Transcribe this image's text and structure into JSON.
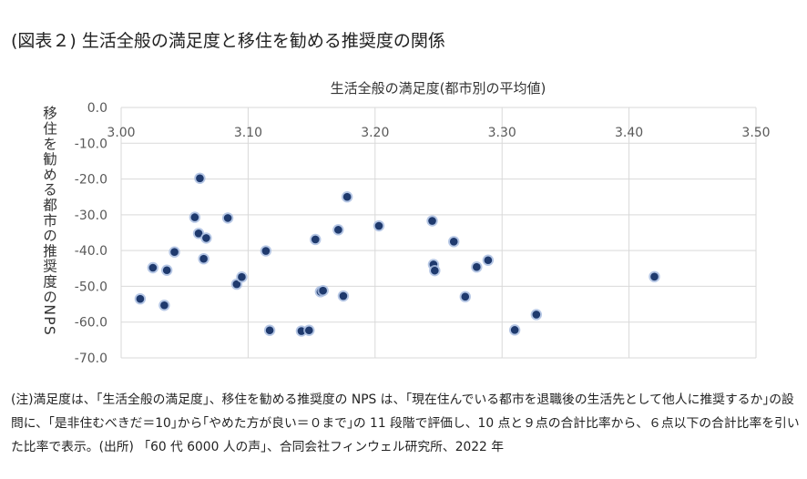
{
  "figure": {
    "title": "(図表２)  生活全般の満足度と移住を勧める推奨度の関係",
    "note": "(注)満足度は、｢生活全般の満足度｣、移住を勧める推奨度の NPS は、｢現在住んでいる都市を退職後の生活先として他人に推奨するか｣の設問に、｢是非住むべきだ＝10｣から｢やめた方が良い＝０まで｣の 11 段階で評価し、10 点と９点の合計比率から、６点以下の合計比率を引いた比率で表示。(出所) 「60 代 6000 人の声」、合同会社フィンウェル研究所、2022 年"
  },
  "chart_data": {
    "type": "scatter",
    "xlabel": "生活全般の満足度(都市別の平均値)",
    "ylabel": "移住を勧める都市の推奨度のNPS",
    "xlim": [
      3.0,
      3.5
    ],
    "ylim": [
      -70,
      0
    ],
    "x_ticks": [
      "3.00",
      "3.10",
      "3.20",
      "3.30",
      "3.40",
      "3.50"
    ],
    "y_ticks": [
      "0.0",
      "-10.0",
      "-20.0",
      "-30.0",
      "-40.0",
      "-50.0",
      "-60.0",
      "-70.0"
    ],
    "grid": true,
    "marker_color": "#1f3a6e",
    "points": [
      {
        "x": 3.015,
        "y": -53.5
      },
      {
        "x": 3.025,
        "y": -44.8
      },
      {
        "x": 3.034,
        "y": -55.3
      },
      {
        "x": 3.036,
        "y": -45.5
      },
      {
        "x": 3.042,
        "y": -40.4
      },
      {
        "x": 3.058,
        "y": -30.7
      },
      {
        "x": 3.061,
        "y": -35.2
      },
      {
        "x": 3.062,
        "y": -19.8
      },
      {
        "x": 3.065,
        "y": -42.3
      },
      {
        "x": 3.067,
        "y": -36.5
      },
      {
        "x": 3.084,
        "y": -30.9
      },
      {
        "x": 3.091,
        "y": -49.4
      },
      {
        "x": 3.095,
        "y": -47.4
      },
      {
        "x": 3.114,
        "y": -40.1
      },
      {
        "x": 3.117,
        "y": -62.3
      },
      {
        "x": 3.142,
        "y": -62.5
      },
      {
        "x": 3.148,
        "y": -62.3
      },
      {
        "x": 3.153,
        "y": -36.9
      },
      {
        "x": 3.157,
        "y": -51.5
      },
      {
        "x": 3.159,
        "y": -51.2
      },
      {
        "x": 3.171,
        "y": -34.2
      },
      {
        "x": 3.175,
        "y": -52.7
      },
      {
        "x": 3.178,
        "y": -25.0
      },
      {
        "x": 3.203,
        "y": -33.1
      },
      {
        "x": 3.245,
        "y": -31.7
      },
      {
        "x": 3.246,
        "y": -43.9
      },
      {
        "x": 3.247,
        "y": -45.6
      },
      {
        "x": 3.262,
        "y": -37.5
      },
      {
        "x": 3.271,
        "y": -52.9
      },
      {
        "x": 3.28,
        "y": -44.6
      },
      {
        "x": 3.289,
        "y": -42.7
      },
      {
        "x": 3.31,
        "y": -62.2
      },
      {
        "x": 3.327,
        "y": -57.9
      },
      {
        "x": 3.42,
        "y": -47.3
      }
    ]
  }
}
